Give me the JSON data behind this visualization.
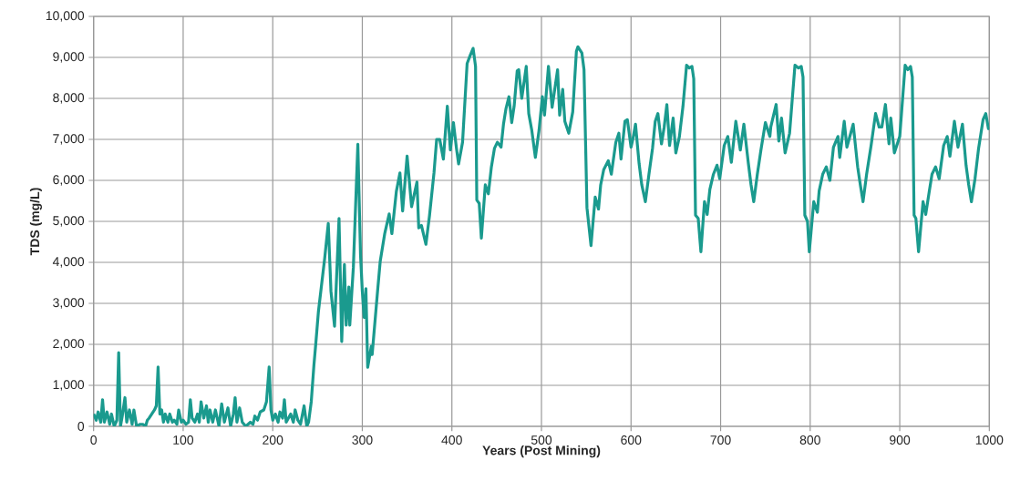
{
  "chart_data": {
    "type": "line",
    "xlabel": "Years (Post Mining)",
    "ylabel": "TDS (mg/L)",
    "color": "#1a9a8e",
    "grid": true,
    "marker": "none",
    "line_style": "solid",
    "xlim": [
      0,
      1000
    ],
    "ylim": [
      0,
      10000
    ],
    "xticks": [
      0,
      100,
      200,
      300,
      400,
      500,
      600,
      700,
      800,
      900,
      1000
    ],
    "yticks": [
      0,
      {
        "value": 1000,
        "label": "1,000"
      },
      {
        "value": 2000,
        "label": "2,000"
      },
      {
        "value": 3000,
        "label": "3,000"
      },
      {
        "value": 4000,
        "label": "4,000"
      },
      {
        "value": 5000,
        "label": "5,000"
      },
      {
        "value": 6000,
        "label": "6,000"
      },
      {
        "value": 7000,
        "label": "7,000"
      },
      {
        "value": 8000,
        "label": "8,000"
      },
      {
        "value": 9000,
        "label": "9,000"
      },
      {
        "value": 10000,
        "label": "10,000"
      }
    ],
    "x": [
      0,
      3,
      5,
      8,
      10,
      12,
      15,
      18,
      20,
      23,
      26,
      28,
      30,
      32,
      35,
      37,
      40,
      43,
      45,
      48,
      52,
      55,
      58,
      60,
      62,
      65,
      68,
      70,
      72,
      74,
      76,
      78,
      80,
      83,
      85,
      88,
      90,
      93,
      95,
      98,
      100,
      103,
      106,
      108,
      110,
      113,
      116,
      118,
      120,
      123,
      126,
      128,
      130,
      133,
      136,
      140,
      143,
      146,
      150,
      153,
      156,
      158,
      160,
      163,
      166,
      170,
      175,
      178,
      180,
      183,
      186,
      190,
      193,
      196,
      198,
      200,
      203,
      206,
      208,
      211,
      213,
      215,
      220,
      223,
      225,
      228,
      231,
      235,
      238,
      240,
      243,
      246,
      248,
      251,
      258,
      262,
      265,
      269,
      274,
      277,
      280,
      282,
      285,
      286,
      290,
      295,
      298,
      300,
      302,
      304,
      306,
      310,
      311,
      317,
      320,
      325,
      330,
      333,
      338,
      342,
      345,
      350,
      355,
      361,
      363,
      366,
      371,
      375,
      380,
      383,
      386.4,
      390.5,
      394.9,
      398.3,
      401.7,
      405.1,
      407.5,
      411.9,
      417,
      420.3,
      423.7,
      426.4,
      427.8,
      430.5,
      432.9,
      437.3,
      440.7,
      444.1,
      447.5,
      450.8,
      454.9,
      457.6,
      460.3,
      463.7,
      466.8,
      469.5,
      472.9,
      474.6,
      478,
      483,
      485.8,
      489.2,
      493.2,
      497.3,
      501,
      503.4,
      507.8,
      511.9,
      518,
      520.3,
      523.7,
      526.1,
      530.5,
      534.9,
      539,
      540.7,
      545.1,
      547.5,
      550.8,
      555.3,
      560,
      563.7,
      566.1,
      569.5,
      574.6,
      578,
      583,
      586.4,
      588.8,
      593.2,
      595.9,
      600,
      602,
      605,
      609,
      612,
      616,
      620,
      624,
      627,
      630,
      634,
      637,
      640,
      643,
      647,
      650,
      654,
      658,
      662,
      665,
      668,
      670,
      672,
      675,
      678,
      682,
      685,
      688,
      692,
      696,
      699,
      704,
      708,
      712,
      717,
      722,
      726,
      731,
      734,
      737,
      741,
      745,
      750,
      755,
      756,
      762,
      765,
      768,
      772,
      777,
      783,
      787,
      790,
      792,
      794,
      797,
      799,
      804,
      808,
      810,
      814,
      818,
      822,
      826,
      831,
      833,
      838,
      841,
      848,
      853,
      856,
      859,
      863,
      868,
      873,
      877,
      880,
      884,
      888,
      890,
      894,
      900,
      906,
      909,
      912,
      914,
      916,
      918,
      921,
      926,
      929,
      933,
      936,
      940,
      944,
      949,
      953,
      956,
      961,
      965,
      970,
      974,
      977,
      980,
      984,
      988,
      993,
      996,
      999,
      1000
    ],
    "values": [
      300,
      150,
      350,
      100,
      650,
      100,
      350,
      50,
      300,
      0,
      150,
      1800,
      0,
      250,
      700,
      100,
      400,
      50,
      400,
      0,
      50,
      50,
      0,
      150,
      200,
      300,
      400,
      500,
      1450,
      300,
      400,
      100,
      300,
      100,
      300,
      100,
      150,
      50,
      400,
      100,
      150,
      50,
      100,
      650,
      200,
      100,
      300,
      100,
      600,
      200,
      500,
      100,
      400,
      100,
      400,
      0,
      550,
      100,
      450,
      0,
      300,
      700,
      100,
      450,
      100,
      0,
      100,
      50,
      250,
      150,
      350,
      400,
      600,
      1450,
      400,
      150,
      300,
      100,
      350,
      200,
      650,
      100,
      300,
      100,
      400,
      150,
      50,
      500,
      0,
      100,
      600,
      1500,
      2000,
      2800,
      4100,
      4950,
      3290,
      2440,
      5070,
      2070,
      3950,
      2470,
      3400,
      2470,
      3880,
      6880,
      4180,
      3290,
      2660,
      3360,
      1440,
      1950,
      1750,
      3290,
      4030,
      4700,
      5180,
      4700,
      5730,
      6180,
      5250,
      6590,
      5360,
      5960,
      4840,
      4900,
      4440,
      5140,
      6180,
      7000,
      7000,
      6520,
      7810,
      6740,
      7410,
      6780,
      6400,
      6930,
      8850,
      9040,
      9220,
      8780,
      5520,
      5440,
      4590,
      5890,
      5670,
      6330,
      6780,
      6930,
      6810,
      7370,
      7740,
      8040,
      7410,
      7810,
      8670,
      8700,
      8000,
      8780,
      7630,
      7220,
      6560,
      7220,
      8040,
      7590,
      8780,
      7780,
      8700,
      7590,
      8220,
      7440,
      7150,
      7670,
      9150,
      9260,
      9110,
      8700,
      5330,
      4410,
      5590,
      5300,
      5890,
      6260,
      6480,
      6150,
      6930,
      7150,
      6520,
      7440,
      7480,
      6810,
      7000,
      7370,
      6410,
      5890,
      5480,
      6150,
      6780,
      7440,
      7630,
      6890,
      7300,
      7850,
      6850,
      7520,
      6670,
      7070,
      7810,
      8810,
      8740,
      8780,
      8480,
      5150,
      5070,
      4260,
      5480,
      5170,
      5780,
      6150,
      6370,
      6040,
      6850,
      7070,
      6440,
      7440,
      6740,
      7370,
      6410,
      5890,
      5480,
      6150,
      6740,
      7410,
      7070,
      7300,
      7850,
      6960,
      7520,
      6670,
      7150,
      8810,
      8740,
      8780,
      8520,
      5150,
      5000,
      4260,
      5480,
      5220,
      5740,
      6150,
      6330,
      6000,
      6810,
      7070,
      6560,
      7440,
      6810,
      7370,
      6330,
      5890,
      5480,
      6150,
      6850,
      7630,
      7300,
      7300,
      7850,
      6890,
      7520,
      6670,
      7070,
      8810,
      8700,
      8780,
      8520,
      5150,
      5070,
      4260,
      5480,
      5170,
      5740,
      6150,
      6330,
      6040,
      6850,
      7070,
      6590,
      7440,
      6810,
      7370,
      6370,
      5890,
      5480,
      6040,
      6780,
      7480,
      7630,
      7260,
      7300
    ]
  }
}
